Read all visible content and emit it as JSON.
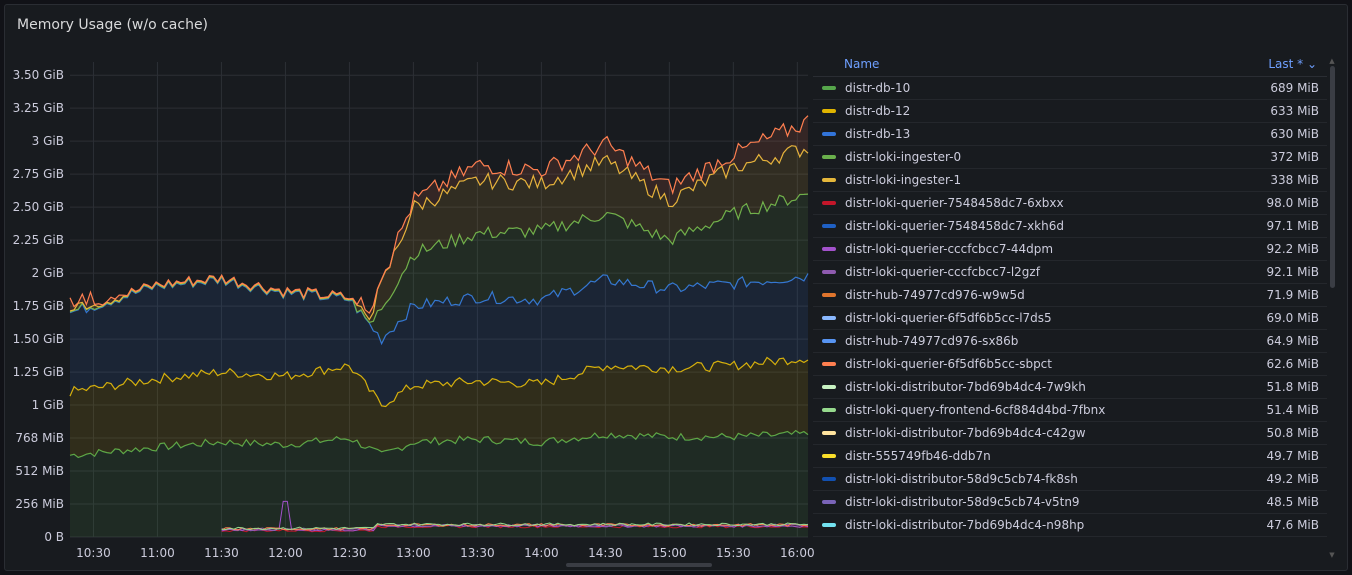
{
  "panel": {
    "title": "Memory Usage (w/o cache)"
  },
  "legend": {
    "header_name": "Name",
    "header_last": "Last * ⌄",
    "items": [
      {
        "name": "distr-db-10",
        "value": "689 MiB",
        "color": "#56a64b"
      },
      {
        "name": "distr-db-12",
        "value": "633 MiB",
        "color": "#e0b400"
      },
      {
        "name": "distr-db-13",
        "value": "630 MiB",
        "color": "#3274d9"
      },
      {
        "name": "distr-loki-ingester-0",
        "value": "372 MiB",
        "color": "#6ab04c"
      },
      {
        "name": "distr-loki-ingester-1",
        "value": "338 MiB",
        "color": "#e5b73b"
      },
      {
        "name": "distr-loki-querier-7548458dc7-6xbxx",
        "value": "98.0 MiB",
        "color": "#c4162a"
      },
      {
        "name": "distr-loki-querier-7548458dc7-xkh6d",
        "value": "97.1 MiB",
        "color": "#1f60c4"
      },
      {
        "name": "distr-loki-querier-cccfcbcc7-44dpm",
        "value": "92.2 MiB",
        "color": "#a352cc"
      },
      {
        "name": "distr-loki-querier-cccfcbcc7-l2gzf",
        "value": "92.1 MiB",
        "color": "#8f5bb0"
      },
      {
        "name": "distr-hub-74977cd976-w9w5d",
        "value": "71.9 MiB",
        "color": "#e0752d"
      },
      {
        "name": "distr-loki-querier-6f5df6b5cc-l7ds5",
        "value": "69.0 MiB",
        "color": "#8ab8ff"
      },
      {
        "name": "distr-hub-74977cd976-sx86b",
        "value": "64.9 MiB",
        "color": "#5794f2"
      },
      {
        "name": "distr-loki-querier-6f5df6b5cc-sbpct",
        "value": "62.6 MiB",
        "color": "#ff7f50"
      },
      {
        "name": "distr-loki-distributor-7bd69b4dc4-7w9kh",
        "value": "51.8 MiB",
        "color": "#c8f2c2"
      },
      {
        "name": "distr-loki-query-frontend-6cf884d4bd-7fbnx",
        "value": "51.4 MiB",
        "color": "#96d98d"
      },
      {
        "name": "distr-loki-distributor-7bd69b4dc4-c42gw",
        "value": "50.8 MiB",
        "color": "#ffe39e"
      },
      {
        "name": "distr-555749fb46-ddb7n",
        "value": "49.7 MiB",
        "color": "#fade2a"
      },
      {
        "name": "distr-loki-distributor-58d9c5cb74-fk8sh",
        "value": "49.2 MiB",
        "color": "#1250b0"
      },
      {
        "name": "distr-loki-distributor-58d9c5cb74-v5tn9",
        "value": "48.5 MiB",
        "color": "#7a64b8"
      },
      {
        "name": "distr-loki-distributor-7bd69b4dc4-n98hp",
        "value": "47.6 MiB",
        "color": "#73e2f0"
      }
    ]
  },
  "chart_data": {
    "type": "area",
    "y_unit": "bytes (binary)",
    "yticks": [
      "0 B",
      "256 MiB",
      "512 MiB",
      "768 MiB",
      "1 GiB",
      "1.25 GiB",
      "1.50 GiB",
      "1.75 GiB",
      "2 GiB",
      "2.25 GiB",
      "2.50 GiB",
      "2.75 GiB",
      "3 GiB",
      "3.25 GiB",
      "3.50 GiB"
    ],
    "ylim_gib": [
      0,
      3.6
    ],
    "xticks": [
      "10:30",
      "11:00",
      "11:30",
      "12:00",
      "12:30",
      "13:00",
      "13:30",
      "14:00",
      "14:30",
      "15:00",
      "15:30",
      "16:00"
    ],
    "xlim": [
      "10:19",
      "16:05"
    ],
    "stacked": true,
    "grid": true,
    "legend_placement": "right",
    "series_cumulative_approx_gib": [
      {
        "name": "distr-db-10",
        "x": [
          "10:19",
          "11:00",
          "11:30",
          "12:00",
          "12:30",
          "12:45",
          "13:00",
          "13:30",
          "14:00",
          "14:30",
          "15:00",
          "15:30",
          "16:05"
        ],
        "y": [
          0.62,
          0.68,
          0.72,
          0.7,
          0.75,
          0.62,
          0.72,
          0.74,
          0.72,
          0.78,
          0.76,
          0.76,
          0.78
        ]
      },
      {
        "name": "distr-db-12",
        "x": [
          "10:19",
          "11:00",
          "11:30",
          "12:00",
          "12:30",
          "12:45",
          "13:00",
          "13:30",
          "14:00",
          "14:30",
          "15:00",
          "15:30",
          "16:05"
        ],
        "y": [
          1.1,
          1.2,
          1.25,
          1.22,
          1.3,
          1.0,
          1.15,
          1.18,
          1.16,
          1.3,
          1.28,
          1.3,
          1.36
        ]
      },
      {
        "name": "distr-db-13",
        "x": [
          "10:19",
          "11:00",
          "11:30",
          "12:00",
          "12:30",
          "12:45",
          "13:00",
          "13:30",
          "14:00",
          "14:30",
          "15:00",
          "15:30",
          "16:05"
        ],
        "y": [
          1.7,
          1.9,
          1.95,
          1.85,
          1.8,
          1.5,
          1.75,
          1.82,
          1.8,
          1.95,
          1.88,
          1.92,
          1.98
        ]
      },
      {
        "name": "distr-loki-ingester-0",
        "x": [
          "10:19",
          "12:40",
          "13:00",
          "13:30",
          "14:00",
          "14:30",
          "15:00",
          "15:30",
          "16:05"
        ],
        "y": [
          1.72,
          1.6,
          2.15,
          2.3,
          2.32,
          2.45,
          2.25,
          2.45,
          2.6
        ]
      },
      {
        "name": "distr-loki-ingester-1",
        "x": [
          "10:19",
          "12:40",
          "13:00",
          "13:30",
          "14:00",
          "14:30",
          "15:00",
          "15:30",
          "16:05"
        ],
        "y": [
          1.74,
          1.7,
          2.5,
          2.7,
          2.68,
          2.85,
          2.55,
          2.8,
          2.95
        ]
      },
      {
        "name": "distr-loki-querier-6f5df6b5cc-sbpct",
        "x": [
          "10:19",
          "12:40",
          "13:00",
          "13:30",
          "14:00",
          "14:30",
          "15:00",
          "15:30",
          "16:05"
        ],
        "y": [
          1.8,
          1.75,
          2.55,
          2.82,
          2.78,
          2.98,
          2.65,
          2.9,
          3.15
        ]
      }
    ]
  }
}
